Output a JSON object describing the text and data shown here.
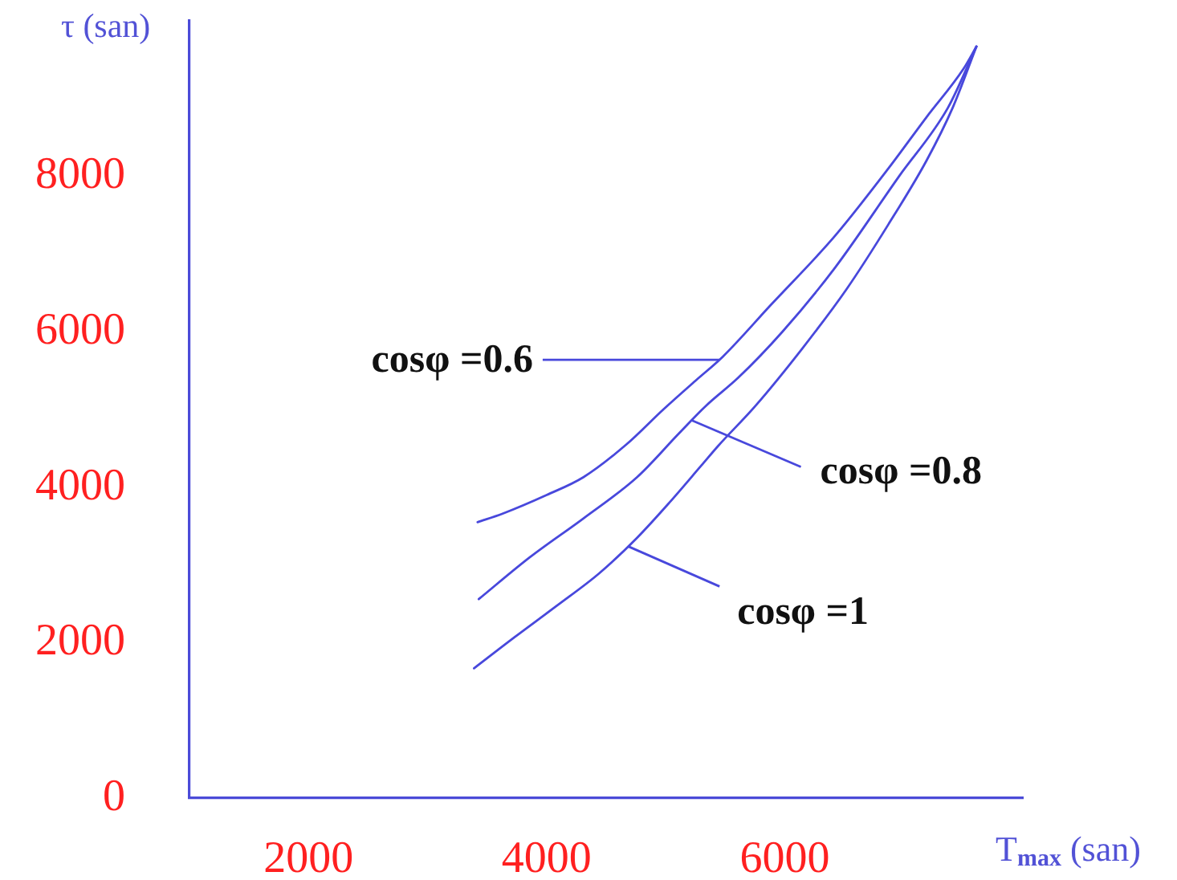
{
  "chart_data": {
    "type": "line",
    "xlabel": "T$_{max}$ (san)",
    "ylabel": "τ (san)",
    "xlim": [
      1000,
      8000
    ],
    "xticks": [
      2000,
      4000,
      6000
    ],
    "ylim": [
      0,
      10000
    ],
    "yticks": [
      0,
      2000,
      4000,
      6000,
      8000
    ],
    "series": [
      {
        "name": "cosφ =0.6",
        "color": "#4848dc",
        "x": [
          3420,
          3630,
          4000,
          4310,
          4670,
          4980,
          5250,
          5480,
          5880,
          6420,
          6870,
          7190,
          7500,
          7610
        ],
        "values": [
          3550,
          3660,
          3900,
          4130,
          4550,
          5000,
          5370,
          5680,
          6340,
          7230,
          8100,
          8760,
          9380,
          9670
        ]
      },
      {
        "name": "cosφ =0.8",
        "color": "#4848dc",
        "x": [
          3430,
          3860,
          4310,
          4760,
          5110,
          5340,
          5610,
          5980,
          6420,
          6960,
          7370,
          7610
        ],
        "values": [
          2560,
          3100,
          3600,
          4130,
          4690,
          5050,
          5410,
          6000,
          6820,
          8000,
          8880,
          9670
        ]
      },
      {
        "name": "cosφ =1",
        "color": "#4848dc",
        "x": [
          3390,
          3730,
          4090,
          4440,
          4760,
          5030,
          5300,
          5440,
          5750,
          6150,
          6520,
          6870,
          7190,
          7410,
          7610
        ],
        "values": [
          1670,
          2070,
          2480,
          2890,
          3350,
          3800,
          4280,
          4530,
          5040,
          5790,
          6550,
          7380,
          8200,
          8880,
          9670
        ]
      }
    ]
  }
}
